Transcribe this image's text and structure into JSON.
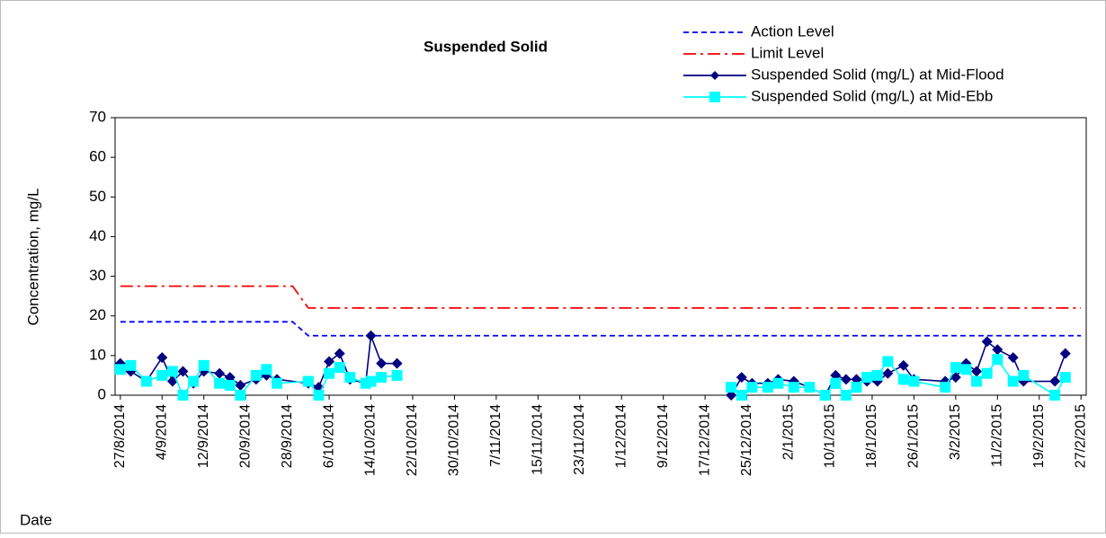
{
  "chart_data": {
    "type": "line",
    "title": "Suspended Solid",
    "y_label": "Concentration, mg/L",
    "x_label": "Date",
    "ylim": [
      0,
      70
    ],
    "yticks": [
      0,
      10,
      20,
      30,
      40,
      50,
      60,
      70
    ],
    "xlim": [
      "2014-08-26",
      "2015-02-28"
    ],
    "xticks": [
      {
        "value": "2014-08-27",
        "label": "27/8/2014"
      },
      {
        "value": "2014-09-04",
        "label": "4/9/2014"
      },
      {
        "value": "2014-09-12",
        "label": "12/9/2014"
      },
      {
        "value": "2014-09-20",
        "label": "20/9/2014"
      },
      {
        "value": "2014-09-28",
        "label": "28/9/2014"
      },
      {
        "value": "2014-10-06",
        "label": "6/10/2014"
      },
      {
        "value": "2014-10-14",
        "label": "14/10/2014"
      },
      {
        "value": "2014-10-22",
        "label": "22/10/2014"
      },
      {
        "value": "2014-10-30",
        "label": "30/10/2014"
      },
      {
        "value": "2014-11-07",
        "label": "7/11/2014"
      },
      {
        "value": "2014-11-15",
        "label": "15/11/2014"
      },
      {
        "value": "2014-11-23",
        "label": "23/11/2014"
      },
      {
        "value": "2014-12-01",
        "label": "1/12/2014"
      },
      {
        "value": "2014-12-09",
        "label": "9/12/2014"
      },
      {
        "value": "2014-12-17",
        "label": "17/12/2014"
      },
      {
        "value": "2014-12-25",
        "label": "25/12/2014"
      },
      {
        "value": "2015-01-02",
        "label": "2/1/2015"
      },
      {
        "value": "2015-01-10",
        "label": "10/1/2015"
      },
      {
        "value": "2015-01-18",
        "label": "18/1/2015"
      },
      {
        "value": "2015-01-26",
        "label": "26/1/2015"
      },
      {
        "value": "2015-02-03",
        "label": "3/2/2015"
      },
      {
        "value": "2015-02-11",
        "label": "11/2/2015"
      },
      {
        "value": "2015-02-19",
        "label": "19/2/2015"
      },
      {
        "value": "2015-02-27",
        "label": "27/2/2015"
      }
    ],
    "x": [
      "2014-08-27",
      "2014-08-29",
      "2014-09-01",
      "2014-09-04",
      "2014-09-06",
      "2014-09-08",
      "2014-09-10",
      "2014-09-12",
      "2014-09-15",
      "2014-09-17",
      "2014-09-19",
      "2014-09-22",
      "2014-09-24",
      "2014-09-26",
      "2014-10-02",
      "2014-10-04",
      "2014-10-06",
      "2014-10-08",
      "2014-10-10",
      "2014-10-13",
      "2014-10-14",
      "2014-10-16",
      "2014-10-19",
      "2014-11-20",
      "2014-12-22",
      "2014-12-24",
      "2014-12-26",
      "2014-12-29",
      "2014-12-31",
      "2015-01-03",
      "2015-01-06",
      "2015-01-09",
      "2015-01-11",
      "2015-01-13",
      "2015-01-15",
      "2015-01-17",
      "2015-01-19",
      "2015-01-21",
      "2015-01-24",
      "2015-01-26",
      "2015-02-01",
      "2015-02-03",
      "2015-02-05",
      "2015-02-07",
      "2015-02-09",
      "2015-02-11",
      "2015-02-14",
      "2015-02-16",
      "2015-02-22",
      "2015-02-24"
    ],
    "series": [
      {
        "name": "Action Level",
        "color": "#0000ff",
        "dash": "6,4",
        "x": [
          "2014-08-27",
          "2014-09-29",
          "2014-10-02",
          "2015-02-27"
        ],
        "values": [
          18.5,
          18.5,
          15,
          15
        ]
      },
      {
        "name": "Limit Level",
        "color": "#ff0000",
        "dash": "14,5,3,5",
        "x": [
          "2014-08-27",
          "2014-09-29",
          "2014-10-02",
          "2015-02-27"
        ],
        "values": [
          27.5,
          27.5,
          22,
          22
        ]
      },
      {
        "name": "Suspended Solid (mg/L) at Mid-Flood",
        "color": "#000080",
        "marker": "diamond",
        "values": [
          8,
          6,
          3.5,
          9.5,
          3.5,
          6,
          3,
          6,
          5.5,
          4.5,
          2.5,
          4,
          5,
          4,
          3,
          2,
          8.5,
          10.5,
          4,
          3,
          15,
          8,
          8,
          null,
          0,
          4.5,
          3,
          3,
          4,
          3.5,
          2,
          0,
          5,
          4,
          4,
          3.5,
          3.5,
          5.5,
          7.5,
          4,
          3.5,
          4.5,
          8,
          6,
          13.5,
          11.5,
          9.5,
          3.5,
          3.5,
          10.5
        ]
      },
      {
        "name": "Suspended Solid (mg/L) at Mid-Ebb",
        "color": "#00ffff",
        "marker": "square",
        "values": [
          6.5,
          7.5,
          3.5,
          5,
          6,
          0,
          3.5,
          7.5,
          3,
          2.5,
          0,
          5,
          6.5,
          3,
          3.5,
          0,
          5.5,
          7,
          4.5,
          3,
          3.5,
          4.5,
          5,
          null,
          2,
          0,
          2,
          2,
          3,
          2,
          2,
          0,
          3,
          0,
          2,
          4.5,
          5,
          8.5,
          4,
          3.5,
          2,
          7,
          6.5,
          3.5,
          5.5,
          9,
          3.5,
          5,
          0,
          4.5
        ]
      }
    ]
  }
}
